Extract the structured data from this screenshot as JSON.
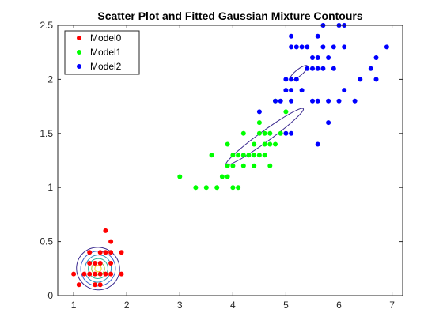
{
  "chart_data": {
    "type": "scatter",
    "title": "Scatter Plot and Fitted Gaussian Mixture Contours",
    "xlabel": "",
    "ylabel": "",
    "xlim": [
      0.7,
      7.2
    ],
    "ylim": [
      0,
      2.5
    ],
    "xticks": [
      1,
      2,
      3,
      4,
      5,
      6,
      7
    ],
    "yticks": [
      0,
      0.5,
      1,
      1.5,
      2,
      2.5
    ],
    "xtick_labels": [
      "1",
      "2",
      "3",
      "4",
      "5",
      "6",
      "7"
    ],
    "ytick_labels": [
      "0",
      "0.5",
      "1",
      "1.5",
      "2",
      "2.5"
    ],
    "grid": false,
    "legend_position": "top-left",
    "series": [
      {
        "name": "Model0",
        "color": "#ff0000",
        "points": [
          [
            1.0,
            0.2
          ],
          [
            1.1,
            0.1
          ],
          [
            1.2,
            0.2
          ],
          [
            1.3,
            0.2
          ],
          [
            1.3,
            0.3
          ],
          [
            1.3,
            0.4
          ],
          [
            1.4,
            0.1
          ],
          [
            1.4,
            0.2
          ],
          [
            1.4,
            0.3
          ],
          [
            1.5,
            0.1
          ],
          [
            1.5,
            0.2
          ],
          [
            1.5,
            0.3
          ],
          [
            1.5,
            0.4
          ],
          [
            1.6,
            0.2
          ],
          [
            1.6,
            0.4
          ],
          [
            1.6,
            0.6
          ],
          [
            1.7,
            0.2
          ],
          [
            1.7,
            0.3
          ],
          [
            1.7,
            0.4
          ],
          [
            1.7,
            0.5
          ],
          [
            1.9,
            0.2
          ],
          [
            1.9,
            0.4
          ]
        ]
      },
      {
        "name": "Model1",
        "color": "#00ff00",
        "points": [
          [
            3.0,
            1.1
          ],
          [
            3.3,
            1.0
          ],
          [
            3.5,
            1.0
          ],
          [
            3.6,
            1.3
          ],
          [
            3.7,
            1.0
          ],
          [
            3.8,
            1.1
          ],
          [
            3.9,
            1.1
          ],
          [
            3.9,
            1.2
          ],
          [
            3.9,
            1.4
          ],
          [
            4.0,
            1.0
          ],
          [
            4.0,
            1.2
          ],
          [
            4.0,
            1.3
          ],
          [
            4.1,
            1.0
          ],
          [
            4.1,
            1.3
          ],
          [
            4.2,
            1.2
          ],
          [
            4.2,
            1.3
          ],
          [
            4.2,
            1.5
          ],
          [
            4.3,
            1.3
          ],
          [
            4.4,
            1.2
          ],
          [
            4.4,
            1.3
          ],
          [
            4.4,
            1.4
          ],
          [
            4.5,
            1.3
          ],
          [
            4.5,
            1.5
          ],
          [
            4.5,
            1.6
          ],
          [
            4.6,
            1.3
          ],
          [
            4.6,
            1.4
          ],
          [
            4.6,
            1.5
          ],
          [
            4.7,
            1.2
          ],
          [
            4.7,
            1.4
          ],
          [
            4.7,
            1.5
          ],
          [
            4.8,
            1.4
          ],
          [
            4.8,
            1.8
          ],
          [
            4.9,
            1.5
          ],
          [
            5.0,
            1.7
          ]
        ]
      },
      {
        "name": "Model2",
        "color": "#0000ff",
        "points": [
          [
            4.5,
            1.7
          ],
          [
            4.8,
            1.8
          ],
          [
            4.9,
            1.8
          ],
          [
            5.0,
            1.5
          ],
          [
            5.0,
            1.9
          ],
          [
            5.0,
            2.0
          ],
          [
            5.1,
            1.5
          ],
          [
            5.1,
            1.8
          ],
          [
            5.1,
            1.9
          ],
          [
            5.1,
            2.0
          ],
          [
            5.1,
            2.3
          ],
          [
            5.1,
            2.4
          ],
          [
            5.2,
            2.0
          ],
          [
            5.2,
            2.3
          ],
          [
            5.3,
            1.9
          ],
          [
            5.3,
            2.3
          ],
          [
            5.4,
            2.1
          ],
          [
            5.4,
            2.3
          ],
          [
            5.5,
            1.8
          ],
          [
            5.5,
            2.1
          ],
          [
            5.5,
            2.2
          ],
          [
            5.6,
            1.4
          ],
          [
            5.6,
            1.8
          ],
          [
            5.6,
            2.1
          ],
          [
            5.6,
            2.2
          ],
          [
            5.6,
            2.4
          ],
          [
            5.7,
            2.1
          ],
          [
            5.7,
            2.3
          ],
          [
            5.7,
            2.5
          ],
          [
            5.8,
            1.6
          ],
          [
            5.8,
            1.8
          ],
          [
            5.8,
            2.2
          ],
          [
            5.9,
            2.1
          ],
          [
            5.9,
            2.3
          ],
          [
            6.0,
            1.8
          ],
          [
            6.0,
            2.5
          ],
          [
            6.1,
            1.9
          ],
          [
            6.1,
            2.3
          ],
          [
            6.1,
            2.5
          ],
          [
            6.3,
            1.8
          ],
          [
            6.4,
            2.0
          ],
          [
            6.6,
            2.1
          ],
          [
            6.7,
            2.0
          ],
          [
            6.7,
            2.2
          ],
          [
            6.9,
            2.3
          ]
        ]
      }
    ],
    "contours": [
      {
        "color": "#3b2a8f",
        "mean": [
          1.46,
          0.25
        ],
        "sx": 0.4,
        "sy": 0.2,
        "angle": 63
      },
      {
        "color": "#3a5fcd",
        "mean": [
          1.46,
          0.25
        ],
        "sx": 0.33,
        "sy": 0.16,
        "angle": 63
      },
      {
        "color": "#2c8fbf",
        "mean": [
          1.46,
          0.25
        ],
        "sx": 0.26,
        "sy": 0.12,
        "angle": 63
      },
      {
        "color": "#2ab59a",
        "mean": [
          1.46,
          0.25
        ],
        "sx": 0.19,
        "sy": 0.09,
        "angle": 63
      },
      {
        "color": "#8cc83c",
        "mean": [
          1.46,
          0.25
        ],
        "sx": 0.12,
        "sy": 0.06,
        "angle": 63
      },
      {
        "color": "#f2d11c",
        "mean": [
          1.46,
          0.25
        ],
        "sx": 0.06,
        "sy": 0.03,
        "angle": 63
      },
      {
        "color": "#3b2a8f",
        "mean": [
          4.6,
          1.47
        ],
        "sx": 0.9,
        "sy": 0.05,
        "angle": 36
      },
      {
        "color": "#3b2a8f",
        "mean": [
          5.24,
          2.06
        ],
        "sx": 0.21,
        "sy": 0.03,
        "angle": 39
      }
    ]
  }
}
